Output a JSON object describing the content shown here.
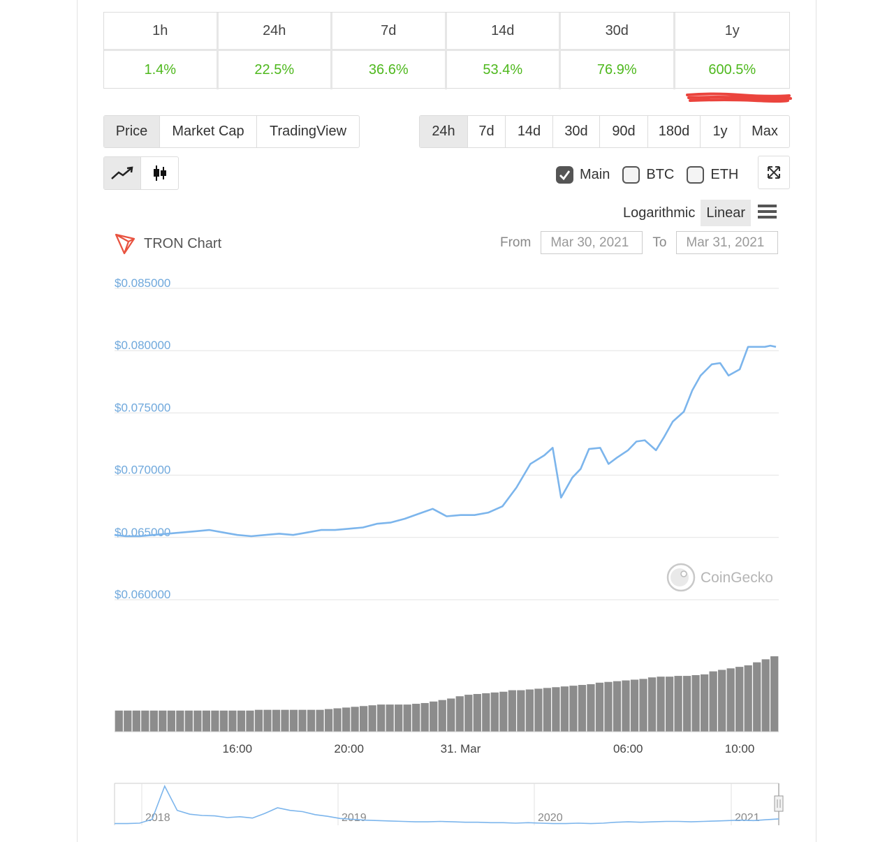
{
  "percent_change": {
    "headers": [
      "1h",
      "24h",
      "7d",
      "14d",
      "30d",
      "1y"
    ],
    "values": [
      "1.4%",
      "22.5%",
      "36.6%",
      "53.4%",
      "76.9%",
      "600.5%"
    ],
    "value_color": "#4eb81d"
  },
  "view_tabs": [
    "Price",
    "Market Cap",
    "TradingView"
  ],
  "view_tabs_active": "Price",
  "range_tabs": [
    "24h",
    "7d",
    "14d",
    "30d",
    "90d",
    "180d",
    "1y",
    "Max"
  ],
  "range_tabs_active": "24h",
  "chart_style": {
    "options": [
      "line-chart-icon",
      "candlestick-icon"
    ],
    "active": "line-chart-icon"
  },
  "series_options": [
    {
      "label": "Main",
      "checked": true
    },
    {
      "label": "BTC",
      "checked": false
    },
    {
      "label": "ETH",
      "checked": false
    }
  ],
  "scale": {
    "options": [
      "Logarithmic",
      "Linear"
    ],
    "active": "Linear"
  },
  "chart_header": {
    "title": "TRON Chart",
    "from_label": "From",
    "from_value": "Mar 30, 2021",
    "to_label": "To",
    "to_value": "Mar 31, 2021"
  },
  "watermark": "CoinGecko",
  "colors": {
    "line": "#7cb5ec",
    "volume": "#8c8c8c",
    "accent_red": "#e8231b",
    "logo_red": "#e8523f"
  },
  "chart_data": {
    "type": "line",
    "title": "TRON Chart",
    "y_tick_labels": [
      "$0.085000",
      "$0.080000",
      "$0.075000",
      "$0.070000",
      "$0.065000",
      "$0.060000"
    ],
    "ylim": [
      0.06,
      0.085
    ],
    "x_tick_labels": [
      "16:00",
      "20:00",
      "31. Mar",
      "06:00",
      "10:00"
    ],
    "x_tick_hours": [
      16,
      20,
      24,
      30,
      34
    ],
    "xlim_hours": [
      11.6,
      35.4
    ],
    "series": [
      {
        "x": [
          11.6,
          12.0,
          12.5,
          13.0,
          13.5,
          14.0,
          14.5,
          15.0,
          15.5,
          16.0,
          16.5,
          17.0,
          17.5,
          18.0,
          18.5,
          19.0,
          19.5,
          20.0,
          20.5,
          21.0,
          21.5,
          22.0,
          22.5,
          23.0,
          23.5,
          24.0,
          24.5,
          25.0,
          25.5,
          26.0,
          26.5,
          27.0,
          27.3,
          27.6,
          28.0,
          28.3,
          28.6,
          29.0,
          29.3,
          29.6,
          30.0,
          30.3,
          30.6,
          31.0,
          31.3,
          31.6,
          32.0,
          32.3,
          32.6,
          33.0,
          33.3,
          33.6,
          34.0,
          34.3,
          34.6,
          34.9,
          35.1,
          35.3
        ],
        "values": [
          0.0652,
          0.0651,
          0.0651,
          0.0652,
          0.0653,
          0.0654,
          0.0655,
          0.0656,
          0.0654,
          0.0652,
          0.0651,
          0.0652,
          0.0653,
          0.0652,
          0.0654,
          0.0656,
          0.0656,
          0.0657,
          0.0658,
          0.0661,
          0.0662,
          0.0665,
          0.0669,
          0.0673,
          0.0667,
          0.0668,
          0.0668,
          0.067,
          0.0675,
          0.069,
          0.0709,
          0.0716,
          0.0722,
          0.0682,
          0.0698,
          0.0705,
          0.0721,
          0.0722,
          0.0709,
          0.0714,
          0.072,
          0.0727,
          0.0728,
          0.072,
          0.0731,
          0.0743,
          0.0751,
          0.0768,
          0.078,
          0.0789,
          0.079,
          0.078,
          0.0785,
          0.0803,
          0.0803,
          0.0803,
          0.0804,
          0.0803
        ]
      }
    ],
    "volume": [
      28,
      28,
      28,
      28,
      28,
      28,
      28,
      28,
      28,
      28,
      28,
      28,
      28,
      28,
      28,
      28,
      29,
      29,
      29,
      29,
      29,
      29,
      29,
      29,
      30,
      31,
      32,
      33,
      34,
      35,
      36,
      36,
      36,
      36,
      37,
      38,
      40,
      42,
      44,
      47,
      49,
      50,
      51,
      52,
      53,
      55,
      55,
      56,
      57,
      58,
      59,
      60,
      61,
      62,
      63,
      65,
      66,
      67,
      68,
      69,
      70,
      72,
      73,
      73,
      74,
      74,
      75,
      76,
      80,
      82,
      84,
      86,
      88,
      92,
      96,
      100
    ],
    "navigator": {
      "x_tick_labels": [
        "2018",
        "2019",
        "2020",
        "2021"
      ],
      "values": [
        0.4,
        0.4,
        0.5,
        1.4,
        9.2,
        3.5,
        2.6,
        2.3,
        2.2,
        1.8,
        2.0,
        1.7,
        2.8,
        4.1,
        3.5,
        3.2,
        2.5,
        2.1,
        1.6,
        1.4,
        1.2,
        1.1,
        1.0,
        0.9,
        0.8,
        0.8,
        0.9,
        0.8,
        0.7,
        0.7,
        0.6,
        0.6,
        0.5,
        0.6,
        0.5,
        0.4,
        0.4,
        0.5,
        0.4,
        0.5,
        0.7,
        0.8,
        0.7,
        0.8,
        0.9,
        0.9,
        0.8,
        0.9,
        1.0,
        1.1,
        1.2,
        1.1,
        1.3,
        1.5
      ]
    }
  }
}
